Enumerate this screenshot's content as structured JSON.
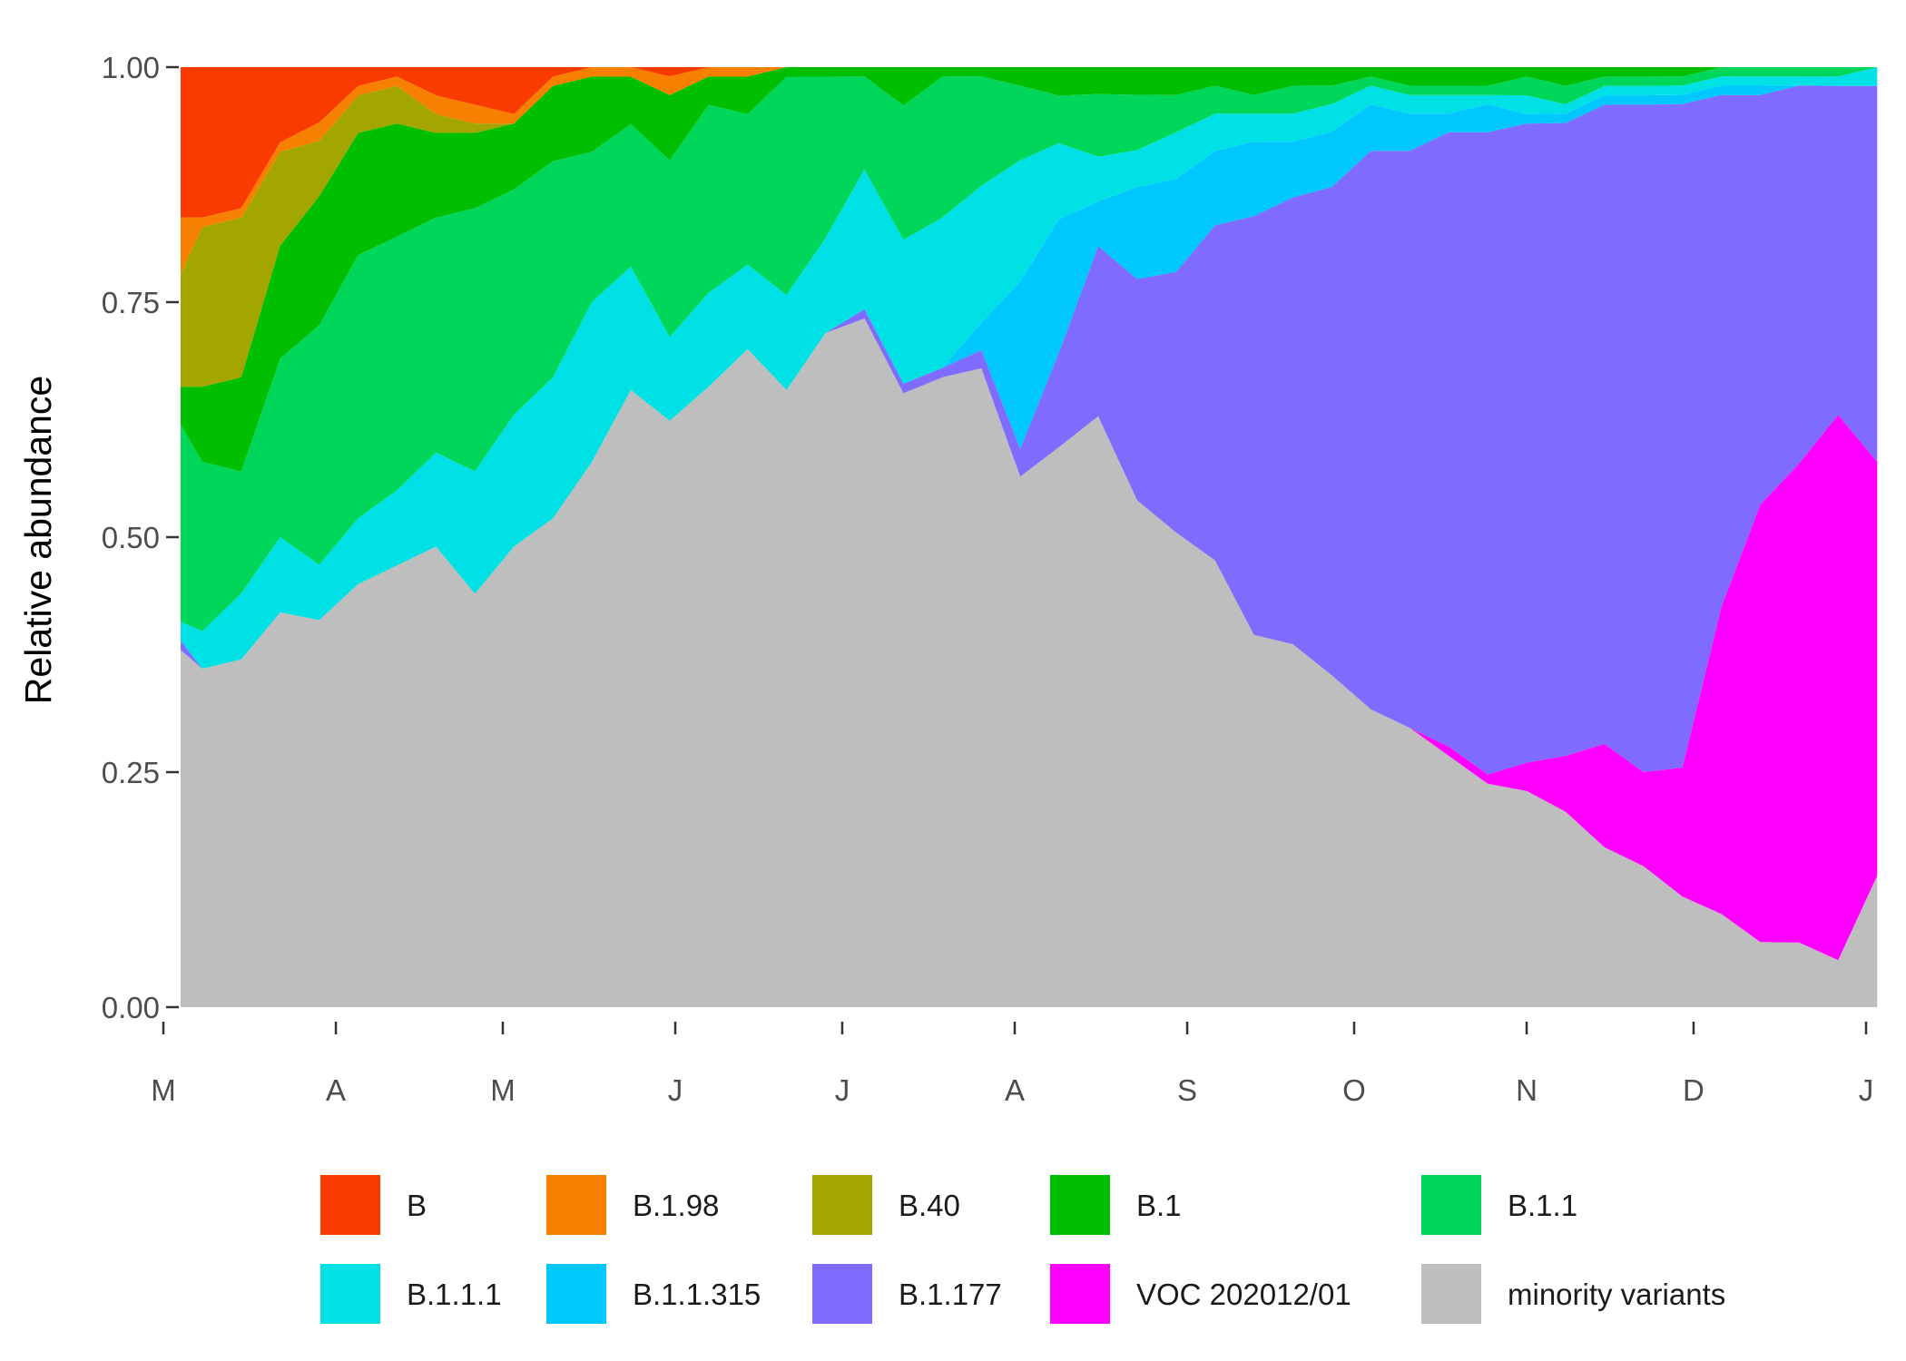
{
  "chart_data": {
    "type": "area",
    "stacked": true,
    "title": "",
    "xlabel": "",
    "ylabel": "Relative abundance",
    "ylim": [
      0,
      1
    ],
    "y_ticks": [
      "0.00",
      "0.25",
      "0.50",
      "0.75",
      "1.00"
    ],
    "x_ticks": [
      "M",
      "A",
      "M",
      "J",
      "J",
      "A",
      "S",
      "O",
      "N",
      "D",
      "J"
    ],
    "grid": false,
    "legend_position": "bottom",
    "x": [
      "2020-03-01",
      "2020-03-08",
      "2020-03-15",
      "2020-03-22",
      "2020-03-29",
      "2020-04-05",
      "2020-04-12",
      "2020-04-19",
      "2020-04-26",
      "2020-05-03",
      "2020-05-10",
      "2020-05-17",
      "2020-05-24",
      "2020-05-31",
      "2020-06-07",
      "2020-06-14",
      "2020-06-21",
      "2020-06-28",
      "2020-07-05",
      "2020-07-12",
      "2020-07-19",
      "2020-07-26",
      "2020-08-02",
      "2020-08-09",
      "2020-08-16",
      "2020-08-23",
      "2020-08-30",
      "2020-09-06",
      "2020-09-13",
      "2020-09-20",
      "2020-09-27",
      "2020-10-04",
      "2020-10-11",
      "2020-10-18",
      "2020-10-25",
      "2020-11-01",
      "2020-11-08",
      "2020-11-15",
      "2020-11-22",
      "2020-11-29",
      "2020-12-06",
      "2020-12-13",
      "2020-12-20",
      "2020-12-27",
      "2021-01-03"
    ],
    "series": [
      {
        "name": "minority variants",
        "color": "#bebebe",
        "values": [
          0.38,
          0.36,
          0.37,
          0.42,
          0.42,
          0.45,
          0.47,
          0.49,
          0.44,
          0.49,
          0.52,
          0.58,
          0.65,
          0.63,
          0.66,
          0.7,
          0.65,
          0.71,
          0.74,
          0.64,
          0.67,
          0.7,
          0.57,
          0.59,
          0.66,
          0.55,
          0.51,
          0.48,
          0.4,
          0.39,
          0.36,
          0.32,
          0.3,
          0.27,
          0.24,
          0.23,
          0.21,
          0.17,
          0.15,
          0.12,
          0.1,
          0.07,
          0.07,
          0.05,
          0.14
        ]
      },
      {
        "name": "VOC 202012/01",
        "color": "#ff00ff",
        "values": [
          0,
          0,
          0,
          0,
          0,
          0,
          0,
          0,
          0,
          0,
          0,
          0,
          0,
          0,
          0,
          0,
          0,
          0,
          0,
          0,
          0,
          0,
          0,
          0,
          0,
          0,
          0,
          0,
          0,
          0,
          0,
          0,
          0,
          0.01,
          0.01,
          0.03,
          0.06,
          0.11,
          0.1,
          0.14,
          0.33,
          0.47,
          0.52,
          0.58,
          0.44
        ]
      },
      {
        "name": "B.1.177",
        "color": "#7f6cff",
        "values": [
          0.01,
          0,
          0,
          0,
          0,
          0,
          0,
          0,
          0,
          0,
          0,
          0,
          0,
          0,
          0,
          0,
          0,
          0,
          0.01,
          0.01,
          0.01,
          0.02,
          0.03,
          0.1,
          0.19,
          0.24,
          0.28,
          0.36,
          0.45,
          0.48,
          0.53,
          0.6,
          0.62,
          0.66,
          0.69,
          0.68,
          0.68,
          0.68,
          0.71,
          0.72,
          0.55,
          0.44,
          0.41,
          0.35,
          0.4
        ]
      },
      {
        "name": "B.1.1.315",
        "color": "#00c8ff",
        "values": [
          0,
          0,
          0,
          0,
          0,
          0,
          0,
          0,
          0,
          0,
          0,
          0,
          0,
          0,
          0,
          0,
          0,
          0,
          0,
          0,
          0,
          0.03,
          0.18,
          0.14,
          0.05,
          0.1,
          0.1,
          0.08,
          0.08,
          0.06,
          0.06,
          0.05,
          0.04,
          0.02,
          0.03,
          0.01,
          0.01,
          0.01,
          0.01,
          0.01,
          0.01,
          0.01,
          0,
          0,
          0
        ]
      },
      {
        "name": "B.1.1.1",
        "color": "#00e1e6",
        "values": [
          0.02,
          0.04,
          0.07,
          0.08,
          0.06,
          0.07,
          0.08,
          0.1,
          0.13,
          0.14,
          0.15,
          0.17,
          0.13,
          0.09,
          0.1,
          0.09,
          0.1,
          0.1,
          0.15,
          0.15,
          0.16,
          0.15,
          0.13,
          0.08,
          0.05,
          0.04,
          0.05,
          0.04,
          0.03,
          0.03,
          0.03,
          0.02,
          0.02,
          0.02,
          0.01,
          0.02,
          0.01,
          0.01,
          0.01,
          0.01,
          0.01,
          0.01,
          0.01,
          0.01,
          0.02
        ]
      },
      {
        "name": "B.1.1",
        "color": "#00d75a",
        "values": [
          0.21,
          0.18,
          0.13,
          0.19,
          0.26,
          0.28,
          0.27,
          0.25,
          0.28,
          0.24,
          0.23,
          0.16,
          0.15,
          0.19,
          0.2,
          0.16,
          0.23,
          0.17,
          0.1,
          0.14,
          0.15,
          0.12,
          0.08,
          0.05,
          0.07,
          0.06,
          0.04,
          0.03,
          0.02,
          0.03,
          0.02,
          0.01,
          0.01,
          0.01,
          0.01,
          0.02,
          0.02,
          0.01,
          0.01,
          0.01,
          0.01,
          0.01,
          0.01,
          0.01,
          0
        ]
      },
      {
        "name": "B.1",
        "color": "#00be00",
        "values": [
          0.04,
          0.08,
          0.1,
          0.12,
          0.14,
          0.13,
          0.12,
          0.09,
          0.08,
          0.07,
          0.08,
          0.08,
          0.05,
          0.07,
          0.03,
          0.04,
          0.01,
          0.01,
          0.01,
          0.04,
          0.01,
          0.01,
          0.02,
          0.03,
          0.03,
          0.03,
          0.03,
          0.02,
          0.03,
          0.02,
          0.02,
          0.01,
          0.02,
          0.02,
          0.02,
          0.01,
          0.02,
          0.01,
          0.01,
          0.01,
          0,
          0,
          0,
          0,
          0
        ]
      },
      {
        "name": "B.40",
        "color": "#a3a500",
        "values": [
          0.12,
          0.17,
          0.17,
          0.1,
          0.06,
          0.04,
          0.04,
          0.02,
          0.01,
          0,
          0,
          0,
          0,
          0,
          0,
          0,
          0,
          0,
          0,
          0,
          0,
          0,
          0,
          0,
          0,
          0,
          0,
          0,
          0,
          0,
          0,
          0,
          0,
          0,
          0,
          0,
          0,
          0,
          0,
          0,
          0,
          0,
          0,
          0,
          0
        ]
      },
      {
        "name": "B.1.98",
        "color": "#f88000",
        "values": [
          0.06,
          0.01,
          0.01,
          0.01,
          0.02,
          0.01,
          0.01,
          0.02,
          0.02,
          0.01,
          0.01,
          0.01,
          0.01,
          0.02,
          0.01,
          0.01,
          0,
          0,
          0,
          0,
          0,
          0,
          0,
          0,
          0,
          0,
          0,
          0,
          0,
          0,
          0,
          0,
          0,
          0,
          0,
          0,
          0,
          0,
          0,
          0,
          0,
          0,
          0,
          0,
          0
        ]
      },
      {
        "name": "B",
        "color": "#fa3b00",
        "values": [
          0.16,
          0.16,
          0.15,
          0.08,
          0.06,
          0.02,
          0.01,
          0.03,
          0.04,
          0.05,
          0.01,
          0,
          0,
          0.01,
          0,
          0,
          0,
          0,
          0,
          0,
          0,
          0,
          0,
          0,
          0,
          0,
          0,
          0,
          0,
          0,
          0,
          0,
          0,
          0,
          0,
          0,
          0,
          0,
          0,
          0,
          0,
          0,
          0,
          0,
          0
        ]
      }
    ],
    "legend": [
      "B",
      "B.1.98",
      "B.40",
      "B.1",
      "B.1.1",
      "B.1.1.1",
      "B.1.1.315",
      "B.1.177",
      "VOC 202012/01",
      "minority variants"
    ]
  }
}
